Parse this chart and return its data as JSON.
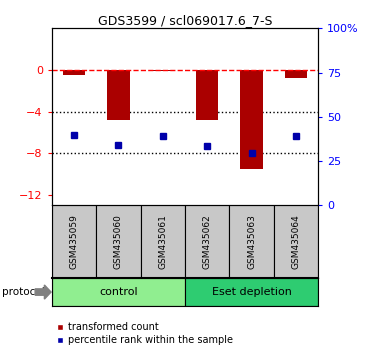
{
  "title": "GDS3599 / scl069017.6_7-S",
  "samples": [
    "GSM435059",
    "GSM435060",
    "GSM435061",
    "GSM435062",
    "GSM435063",
    "GSM435064"
  ],
  "red_values": [
    -0.5,
    -4.8,
    -0.1,
    -4.8,
    -9.5,
    -0.8
  ],
  "blue_values": [
    -6.2,
    -7.2,
    -6.3,
    -7.3,
    -8.0,
    -6.3
  ],
  "groups": [
    {
      "label": "control",
      "samples": [
        0,
        1,
        2
      ],
      "color": "#90EE90"
    },
    {
      "label": "Eset depletion",
      "samples": [
        3,
        4,
        5
      ],
      "color": "#3CB371"
    }
  ],
  "ylim_left": [
    -13,
    4
  ],
  "yticks_left": [
    0,
    -4,
    -8,
    -12
  ],
  "ytick_labels_right": [
    "100%",
    "75",
    "50",
    "25",
    "0"
  ],
  "yticks_right_vals": [
    100,
    75,
    50,
    25,
    0
  ],
  "hline_y": 0,
  "dotted_lines": [
    -4,
    -8
  ],
  "bar_color": "#AA0000",
  "dot_color": "#0000AA",
  "bar_width": 0.5,
  "background_color": "#ffffff",
  "protocol_label": "protocol",
  "legend_red": "transformed count",
  "legend_blue": "percentile rank within the sample",
  "group_box_color_light": "#90EE90",
  "group_box_color_dark": "#2ECC71",
  "sample_box_color": "#C8C8C8"
}
